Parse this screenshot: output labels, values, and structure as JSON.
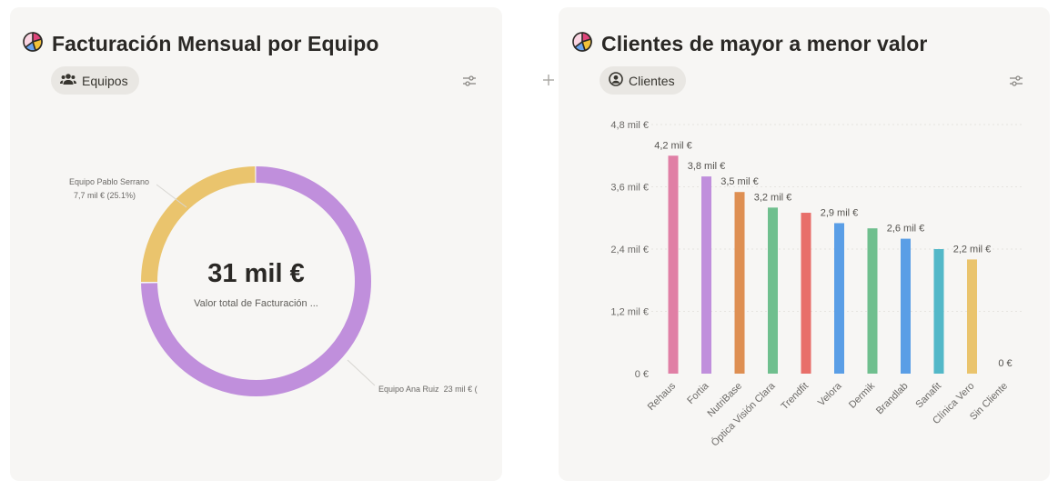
{
  "left_card": {
    "title": "Facturación Mensual por Equipo",
    "chip_label": "Equipos",
    "center_value": "31 mil €",
    "center_label": "Valor total de Facturación ...",
    "slices": [
      {
        "label": "Equipo Pablo Serrano",
        "value_text": "7,7 mil € (25.1%)",
        "percent": 25.1,
        "color": "#eac46d"
      },
      {
        "label": "Equipo Ana Ruiz",
        "value_text": "23 mil € (",
        "percent": 74.9,
        "color": "#c08fdc"
      }
    ]
  },
  "right_card": {
    "title": "Clientes de mayor a menor valor",
    "chip_label": "Clientes",
    "chart_data": {
      "type": "bar",
      "title": "Clientes de mayor a menor valor",
      "categories": [
        "Rehaus",
        "Fortia",
        "NutriBase",
        "Óptica Visión Clara",
        "Trendfit",
        "Velora",
        "Dermik",
        "Brandlab",
        "Sanafit",
        "Clínica Vero",
        "Sin Cliente"
      ],
      "values": [
        4.2,
        3.8,
        3.5,
        3.2,
        3.1,
        2.9,
        2.8,
        2.6,
        2.4,
        2.2,
        0
      ],
      "data_labels": [
        "4,2 mil €",
        "3,8 mil €",
        "3,5 mil €",
        "3,2 mil €",
        "",
        "2,9 mil €",
        "",
        "2,6 mil €",
        "",
        "2,2 mil €",
        "0 €"
      ],
      "colors": [
        "#e07fa5",
        "#c08fdc",
        "#de8f52",
        "#6fbf8e",
        "#e86f6a",
        "#5a9ee6",
        "#6fbf8e",
        "#5a9ee6",
        "#53b8c8",
        "#eac46d",
        "#9e9e9e"
      ],
      "yticks": [
        0,
        1.2,
        2.4,
        3.6,
        4.8
      ],
      "ytick_labels": [
        "0 €",
        "1,2 mil €",
        "2,4 mil €",
        "3,6 mil €",
        "4,8 mil €"
      ],
      "ylim": [
        0,
        4.8
      ],
      "xlabel": "",
      "ylabel": "",
      "grid": true
    }
  },
  "colors": {
    "card_bg": "#f7f6f4",
    "chip_bg": "#e9e7e3",
    "text": "#2a2825"
  },
  "icons": {
    "title_icon": "pie-chart-icon",
    "equipos_chip_icon": "people-icon",
    "clientes_chip_icon": "person-circle-icon",
    "settings_icon": "sliders-icon",
    "add_icon": "plus-icon",
    "drag_icon": "drag-handle-icon"
  }
}
